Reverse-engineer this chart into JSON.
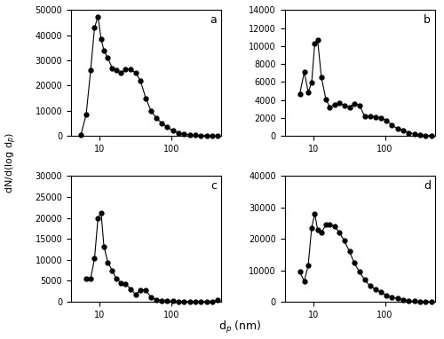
{
  "panel_a": {
    "label": "a",
    "x": [
      5.5,
      6.5,
      7.5,
      8.5,
      9.5,
      10.5,
      11.5,
      13,
      15,
      17,
      20,
      23,
      27,
      32,
      37,
      44,
      52,
      62,
      74,
      88,
      105,
      125,
      150,
      180,
      215,
      260,
      310,
      370,
      440
    ],
    "y": [
      500,
      8500,
      26000,
      43000,
      47500,
      38500,
      34000,
      31000,
      27000,
      26000,
      25000,
      26500,
      26500,
      25000,
      22000,
      15000,
      10000,
      7000,
      5000,
      3500,
      2000,
      1200,
      700,
      400,
      200,
      100,
      50,
      30,
      10
    ],
    "ylim": [
      0,
      50000
    ],
    "yticks": [
      0,
      10000,
      20000,
      30000,
      40000,
      50000
    ]
  },
  "panel_b": {
    "label": "b",
    "x": [
      6.5,
      7.5,
      8.5,
      9.5,
      10.5,
      11.5,
      13,
      15,
      17,
      20,
      23,
      27,
      32,
      37,
      44,
      52,
      62,
      74,
      88,
      105,
      125,
      150,
      180,
      215,
      260,
      310,
      370,
      440
    ],
    "y": [
      4700,
      7100,
      4900,
      5900,
      10300,
      10700,
      6500,
      4100,
      3200,
      3500,
      3700,
      3400,
      3200,
      3600,
      3400,
      2200,
      2200,
      2100,
      2000,
      1700,
      1200,
      800,
      600,
      350,
      200,
      100,
      50,
      20
    ],
    "ylim": [
      0,
      14000
    ],
    "yticks": [
      0,
      2000,
      4000,
      6000,
      8000,
      10000,
      12000,
      14000
    ]
  },
  "panel_c": {
    "label": "c",
    "x": [
      6.5,
      7.5,
      8.5,
      9.5,
      10.5,
      11.5,
      13,
      15,
      17,
      20,
      23,
      27,
      32,
      37,
      44,
      52,
      62,
      74,
      88,
      105,
      125,
      150,
      180,
      215,
      260,
      310,
      370,
      440
    ],
    "y": [
      5500,
      5500,
      10300,
      20000,
      21200,
      13200,
      9400,
      7500,
      5500,
      4500,
      4300,
      3000,
      1700,
      2800,
      2800,
      1000,
      500,
      300,
      200,
      150,
      100,
      80,
      60,
      50,
      40,
      30,
      20,
      500
    ],
    "ylim": [
      0,
      30000
    ],
    "yticks": [
      0,
      5000,
      10000,
      15000,
      20000,
      25000,
      30000
    ]
  },
  "panel_d": {
    "label": "d",
    "x": [
      6.5,
      7.5,
      8.5,
      9.5,
      10.5,
      11.5,
      13,
      15,
      17,
      20,
      23,
      27,
      32,
      37,
      44,
      52,
      62,
      74,
      88,
      105,
      125,
      150,
      180,
      215,
      260,
      310,
      370,
      440
    ],
    "y": [
      9500,
      6500,
      11500,
      23500,
      28000,
      23000,
      22000,
      24500,
      24500,
      24000,
      22000,
      19500,
      16000,
      12500,
      9500,
      7000,
      5000,
      4000,
      3000,
      2000,
      1500,
      1000,
      600,
      300,
      150,
      80,
      40,
      10
    ],
    "ylim": [
      0,
      40000
    ],
    "yticks": [
      0,
      10000,
      20000,
      30000,
      40000
    ]
  },
  "xlim": [
    4,
    500
  ],
  "xlabel": "d$_p$ (nm)",
  "ylabel": "dN/d(log d$_p$)",
  "marker": "o",
  "markersize": 3.5,
  "linewidth": 0.8,
  "color": "black",
  "background": "white"
}
